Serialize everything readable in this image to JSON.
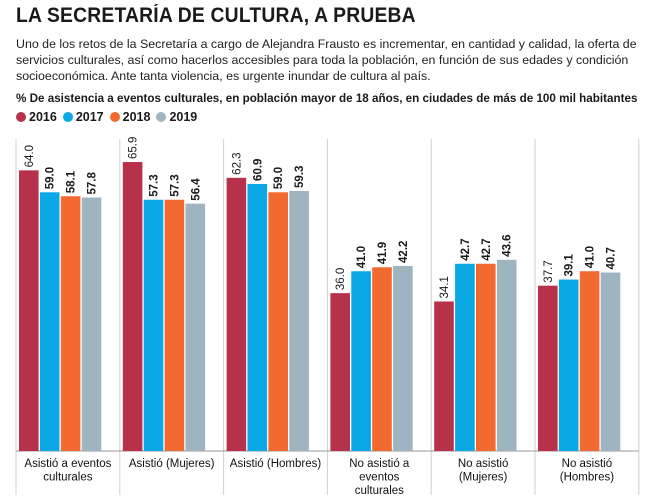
{
  "title": "LA SECRETARÍA DE CULTURA, A PRUEBA",
  "subtitle": "Uno de los retos de la Secretaría a cargo de Alejandra Frausto es incrementar, en cantidad y calidad, la oferta de servicios culturales, así como hacerlos accesibles para toda la población, en función de sus edades y condición socioeconómica. Ante tanta violencia, es urgente inundar de cultura al país.",
  "chart_heading": "% De asistencia a eventos culturales, en población mayor de 18 años, en ciudades de más de 100 mil habitantes",
  "colors": {
    "2016": "#b8314b",
    "2017": "#0aa9e6",
    "2018": "#f26a30",
    "2019": "#9fb4c1"
  },
  "chart_data": {
    "type": "bar",
    "title": "% De asistencia a eventos culturales, en población mayor de 18 años, en ciudades de más de 100 mil habitantes",
    "categories": [
      [
        "Asistió a eventos",
        "culturales"
      ],
      [
        "Asistió (Mujeres)"
      ],
      [
        "Asistió (Hombres)"
      ],
      [
        "No asistió a",
        "eventos",
        "culturales"
      ],
      [
        "No asistió",
        "(Mujeres)"
      ],
      [
        "No asistió",
        "(Hombres)"
      ]
    ],
    "series": [
      {
        "name": "2016",
        "values": [
          64.0,
          65.9,
          62.3,
          36.0,
          34.1,
          37.7
        ]
      },
      {
        "name": "2017",
        "values": [
          59.0,
          57.3,
          60.9,
          41.0,
          42.7,
          39.1
        ]
      },
      {
        "name": "2018",
        "values": [
          58.1,
          57.3,
          59.0,
          41.9,
          42.7,
          41.0
        ]
      },
      {
        "name": "2019",
        "values": [
          57.8,
          56.4,
          59.3,
          42.2,
          43.6,
          40.7
        ]
      }
    ],
    "value_labels": [
      [
        "64.0",
        "65.9",
        "62.3",
        "36.0",
        "34.1",
        "37.7"
      ],
      [
        "59.0",
        "57.3",
        "60.9",
        "41.0",
        "42.7",
        "39.1"
      ],
      [
        "58.1",
        "57.3",
        "59.0",
        "41.9",
        "42.7",
        "41.0"
      ],
      [
        "57.8",
        "56.4",
        "59.3",
        "42.2",
        "43.6",
        "40.7"
      ]
    ],
    "ylim": [
      0,
      70
    ],
    "grid": false,
    "legend": "top-left"
  }
}
